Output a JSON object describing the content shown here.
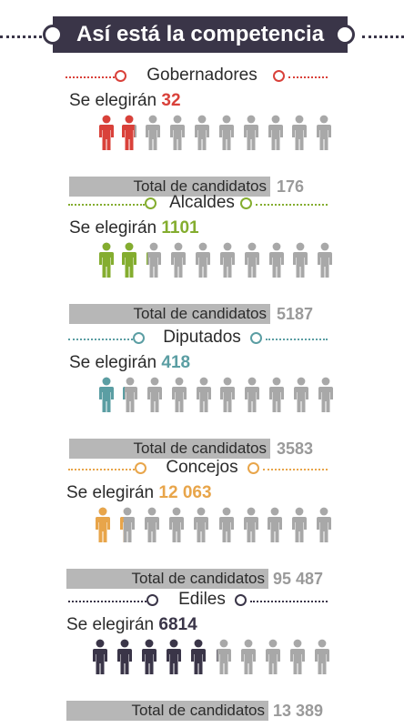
{
  "header": {
    "title": "Así está la competencia"
  },
  "sections": [
    {
      "name": "Gobernadores",
      "elect_prefix": "Se elegirán",
      "elect_value": "32",
      "total_label": "Total de candidatos",
      "total_value": "176",
      "color": "#d9413a",
      "fill_fraction": 0.182
    },
    {
      "name": "Alcaldes",
      "elect_prefix": "Se elegirán",
      "elect_value": "1101",
      "total_label": "Total de candidatos",
      "total_value": "5187",
      "color": "#84ad2f",
      "fill_fraction": 0.212
    },
    {
      "name": "Diputados",
      "elect_prefix": "Se elegirán",
      "elect_value": "418",
      "total_label": "Total de candidatos",
      "total_value": "3583",
      "color": "#5b9ea3",
      "fill_fraction": 0.117
    },
    {
      "name": "Concejos",
      "elect_prefix": "Se elegirán",
      "elect_value": "12 063",
      "total_label": "Total de candidatos",
      "total_value": "95 487",
      "color": "#e8a54a",
      "fill_fraction": 0.126
    },
    {
      "name": "Ediles",
      "elect_prefix": "Se elegirán",
      "elect_value": "6814",
      "total_label": "Total de candidatos",
      "total_value": "13 389",
      "color": "#3a3548",
      "fill_fraction": 0.509
    }
  ]
}
